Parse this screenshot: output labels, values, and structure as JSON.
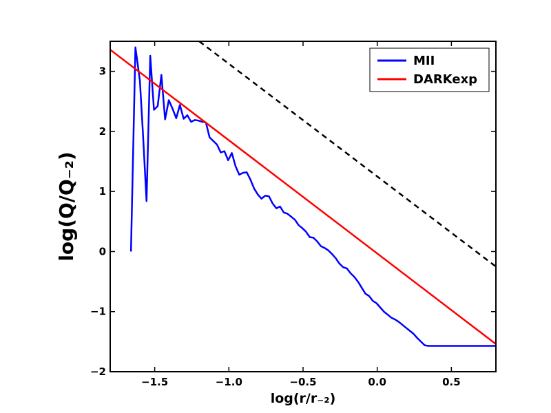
{
  "chart_data": {
    "type": "line",
    "xlabel": "log(r/r₋₂)",
    "ylabel": "log(Q/Q₋₂)",
    "xlim": [
      -1.8,
      0.8
    ],
    "ylim": [
      -2.0,
      3.5
    ],
    "xticks": [
      -1.5,
      -1.0,
      -0.5,
      0.0,
      0.5
    ],
    "xtick_labels": [
      "−1.5",
      "−1.0",
      "−0.5",
      "0.0",
      "0.5"
    ],
    "yticks": [
      -2,
      -1,
      0,
      1,
      2,
      3
    ],
    "ytick_labels": [
      "−2",
      "−1",
      "0",
      "1",
      "2",
      "3"
    ],
    "grid": false,
    "legend_position": "top-right",
    "colors": {
      "mii": "#0000ff",
      "darkexp": "#ff0000",
      "reference": "#000000"
    },
    "series": [
      {
        "name": "MII",
        "style": "solid",
        "x": [
          -1.66,
          -1.63,
          -1.6,
          -1.58,
          -1.555,
          -1.53,
          -1.505,
          -1.48,
          -1.455,
          -1.43,
          -1.405,
          -1.38,
          -1.355,
          -1.33,
          -1.305,
          -1.28,
          -1.255,
          -1.23,
          -1.205,
          -1.18,
          -1.155,
          -1.13,
          -1.105,
          -1.08,
          -1.055,
          -1.03,
          -1.005,
          -0.98,
          -0.955,
          -0.93,
          -0.905,
          -0.88,
          -0.855,
          -0.83,
          -0.805,
          -0.78,
          -0.755,
          -0.73,
          -0.705,
          -0.68,
          -0.655,
          -0.63,
          -0.605,
          -0.58,
          -0.555,
          -0.53,
          -0.505,
          -0.48,
          -0.455,
          -0.43,
          -0.405,
          -0.38,
          -0.355,
          -0.33,
          -0.305,
          -0.28,
          -0.255,
          -0.23,
          -0.205,
          -0.18,
          -0.155,
          -0.13,
          -0.105,
          -0.08,
          -0.055,
          -0.03,
          -0.005,
          0.02,
          0.045,
          0.07,
          0.095,
          0.12,
          0.145,
          0.17,
          0.195,
          0.22,
          0.245,
          0.27,
          0.295,
          0.32,
          0.345,
          0.37,
          0.395,
          0.42,
          0.445,
          0.47,
          0.495,
          0.52,
          0.545,
          0.57,
          0.595,
          0.62,
          0.645,
          0.67,
          0.695,
          0.72,
          0.745,
          0.77,
          0.8
        ],
        "y": [
          0.0,
          3.4,
          2.85,
          2.0,
          0.84,
          3.26,
          2.36,
          2.42,
          2.94,
          2.2,
          2.52,
          2.38,
          2.22,
          2.44,
          2.21,
          2.27,
          2.16,
          2.19,
          2.18,
          2.16,
          2.15,
          1.9,
          1.84,
          1.78,
          1.65,
          1.67,
          1.52,
          1.64,
          1.42,
          1.28,
          1.31,
          1.32,
          1.2,
          1.05,
          0.95,
          0.88,
          0.93,
          0.92,
          0.8,
          0.72,
          0.75,
          0.65,
          0.63,
          0.58,
          0.53,
          0.44,
          0.39,
          0.33,
          0.24,
          0.23,
          0.17,
          0.09,
          0.06,
          0.02,
          -0.04,
          -0.11,
          -0.2,
          -0.26,
          -0.28,
          -0.36,
          -0.42,
          -0.5,
          -0.6,
          -0.7,
          -0.74,
          -0.82,
          -0.86,
          -0.93,
          -1.0,
          -1.05,
          -1.1,
          -1.13,
          -1.17,
          -1.22,
          -1.27,
          -1.32,
          -1.37,
          -1.44,
          -1.5,
          -1.56,
          -1.57,
          -1.57,
          -1.57,
          -1.57,
          -1.57,
          -1.57,
          -1.57,
          -1.57,
          -1.57,
          -1.57,
          -1.57,
          -1.57,
          -1.57,
          -1.57,
          -1.57,
          -1.57,
          -1.57,
          -1.57,
          -1.57
        ]
      },
      {
        "name": "DARKexp",
        "style": "solid",
        "x": [
          -1.8,
          0.8
        ],
        "y": [
          3.36,
          -1.54
        ]
      },
      {
        "style": "dashed",
        "x": [
          -1.2,
          0.8
        ],
        "y": [
          3.5,
          -0.25
        ]
      }
    ]
  }
}
